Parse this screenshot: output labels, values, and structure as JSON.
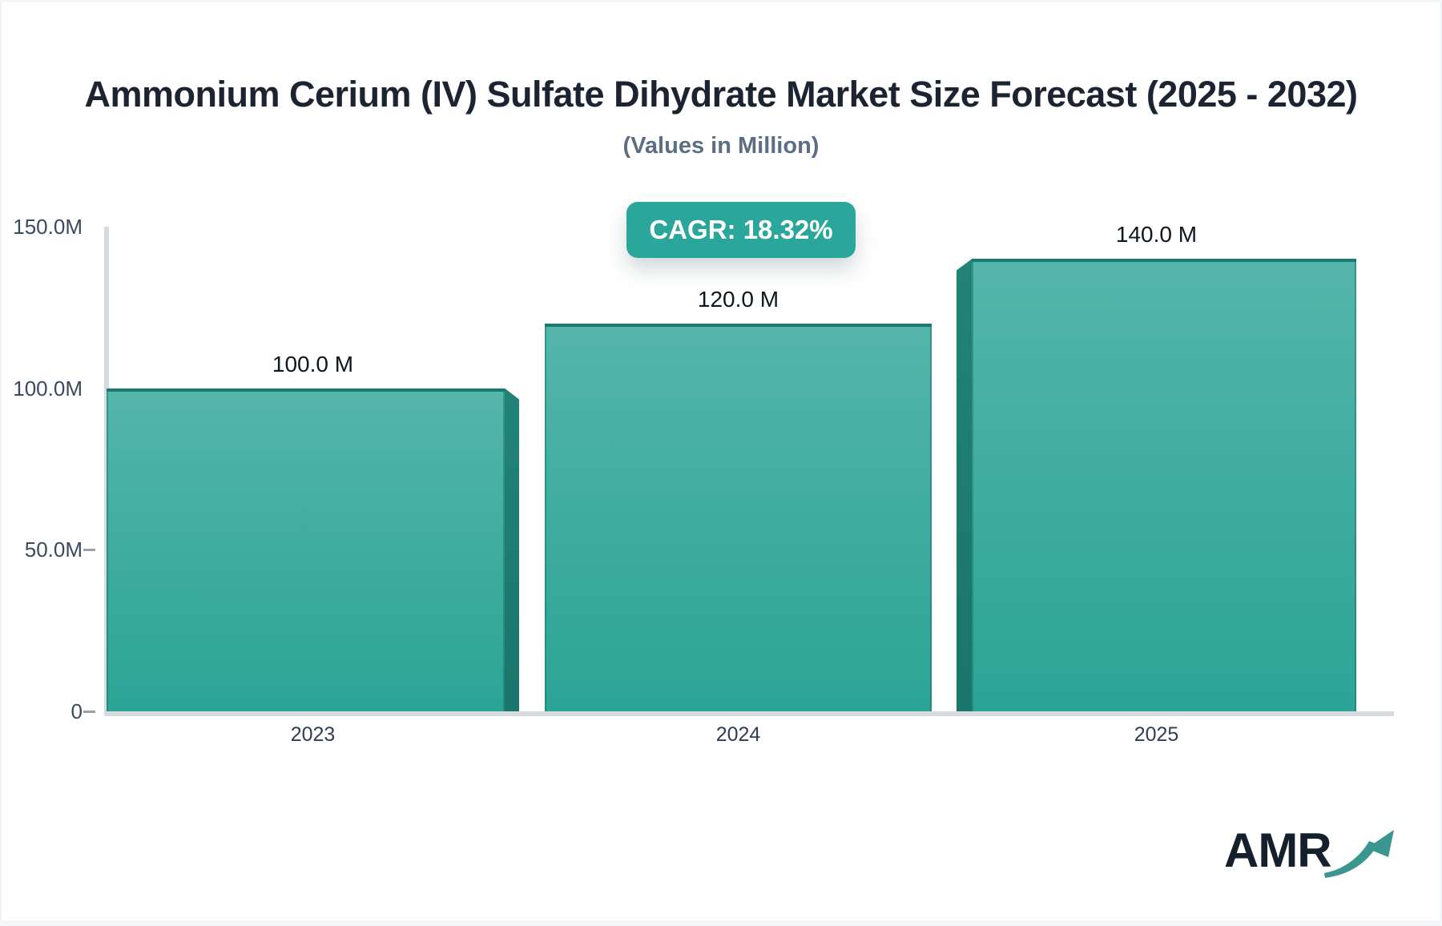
{
  "header": {
    "title": "Ammonium Cerium (IV) Sulfate Dihydrate Market Size Forecast (2025 - 2032)",
    "subtitle": "(Values in Million)"
  },
  "cagr_badge": {
    "label": "CAGR: 18.32%",
    "background": "#2aa69b",
    "text_color": "#ffffff"
  },
  "chart_data": {
    "type": "bar",
    "title": "Ammonium Cerium (IV) Sulfate Dihydrate Market Size Forecast (2025 - 2032)",
    "subtitle": "(Values in Million)",
    "unit": "Million",
    "cagr_percent": 18.32,
    "categories": [
      "2023",
      "2024",
      "2025"
    ],
    "values": [
      100,
      120,
      140
    ],
    "value_labels": [
      "100.0 M",
      "120.0 M",
      "140.0 M"
    ],
    "ylim": [
      0,
      150
    ],
    "y_ticks": [
      {
        "value": 150,
        "label": "150.0M",
        "dash": false
      },
      {
        "value": 100,
        "label": "100.0M",
        "dash": false
      },
      {
        "value": 50,
        "label": "50.0M",
        "dash": true
      },
      {
        "value": 0,
        "label": "0",
        "dash": true
      }
    ],
    "xlabel": "",
    "ylabel": "",
    "grid": false,
    "legend": false,
    "bar_gradient_top": "#54b5ab",
    "bar_gradient_bottom": "#2ba496",
    "bar_edge_dark": "#1a7a6f",
    "axis_line_color": "#d6dbe0"
  },
  "logo": {
    "text": "AMR",
    "text_color": "#15202d",
    "arrow_color": "#3a968e"
  }
}
